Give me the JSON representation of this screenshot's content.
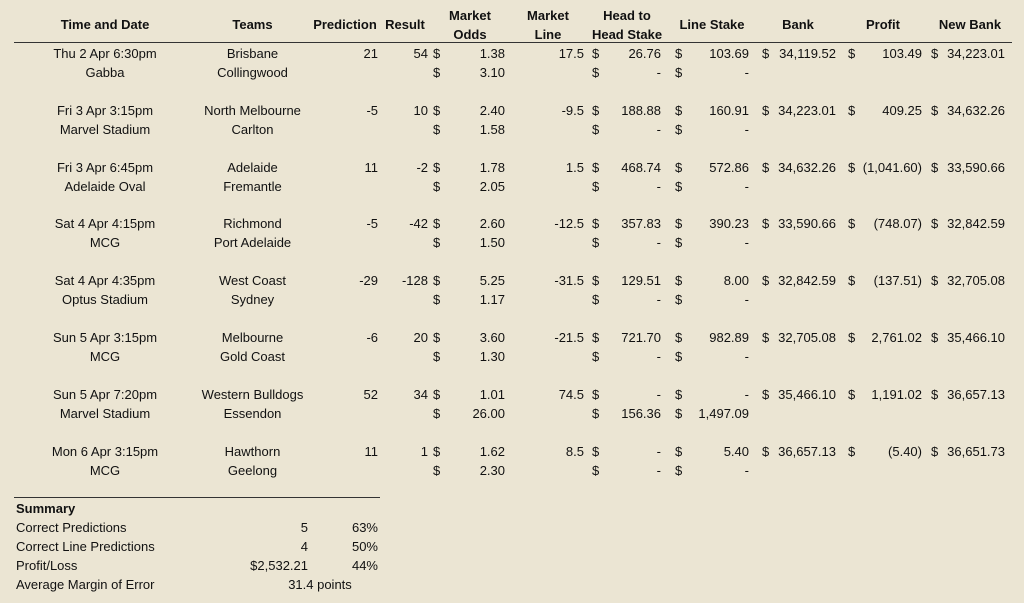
{
  "headers": {
    "time": "Time and Date",
    "teams": "Teams",
    "prediction": "Prediction",
    "result": "Result",
    "odds_1": "Market",
    "odds_2": "Odds",
    "line_1": "Market",
    "line_2": "Line",
    "h2h_1": "Head to",
    "h2h_2": "Head Stake",
    "line_stake": "Line Stake",
    "bank": "Bank",
    "profit": "Profit",
    "new_bank": "New Bank"
  },
  "currency": "$",
  "rows": [
    {
      "date": "Thu 2 Apr 6:30pm",
      "venue": "Gabba",
      "team1": "Brisbane",
      "team2": "Collingwood",
      "prediction": "21",
      "result": "54",
      "odds1": "1.38",
      "odds2": "3.10",
      "line": "17.5",
      "h2h1": "26.76",
      "h2h2": "-",
      "ls1": "103.69",
      "ls2": "-",
      "bank": "34,119.52",
      "profit": "103.49",
      "new_bank": "34,223.01"
    },
    {
      "date": "Fri 3 Apr 3:15pm",
      "venue": "Marvel Stadium",
      "team1": "North Melbourne",
      "team2": "Carlton",
      "prediction": "-5",
      "result": "10",
      "odds1": "2.40",
      "odds2": "1.58",
      "line": "-9.5",
      "h2h1": "188.88",
      "h2h2": "-",
      "ls1": "160.91",
      "ls2": "-",
      "bank": "34,223.01",
      "profit": "409.25",
      "new_bank": "34,632.26"
    },
    {
      "date": "Fri 3 Apr 6:45pm",
      "venue": "Adelaide Oval",
      "team1": "Adelaide",
      "team2": "Fremantle",
      "prediction": "11",
      "result": "-2",
      "odds1": "1.78",
      "odds2": "2.05",
      "line": "1.5",
      "h2h1": "468.74",
      "h2h2": "-",
      "ls1": "572.86",
      "ls2": "-",
      "bank": "34,632.26",
      "profit": "(1,041.60)",
      "new_bank": "33,590.66"
    },
    {
      "date": "Sat 4 Apr 4:15pm",
      "venue": "MCG",
      "team1": "Richmond",
      "team2": "Port Adelaide",
      "prediction": "-5",
      "result": "-42",
      "odds1": "2.60",
      "odds2": "1.50",
      "line": "-12.5",
      "h2h1": "357.83",
      "h2h2": "-",
      "ls1": "390.23",
      "ls2": "-",
      "bank": "33,590.66",
      "profit": "(748.07)",
      "new_bank": "32,842.59"
    },
    {
      "date": "Sat 4 Apr 4:35pm",
      "venue": "Optus Stadium",
      "team1": "West Coast",
      "team2": "Sydney",
      "prediction": "-29",
      "result": "-128",
      "odds1": "5.25",
      "odds2": "1.17",
      "line": "-31.5",
      "h2h1": "129.51",
      "h2h2": "-",
      "ls1": "8.00",
      "ls2": "-",
      "bank": "32,842.59",
      "profit": "(137.51)",
      "new_bank": "32,705.08"
    },
    {
      "date": "Sun 5 Apr 3:15pm",
      "venue": "MCG",
      "team1": "Melbourne",
      "team2": "Gold Coast",
      "prediction": "-6",
      "result": "20",
      "odds1": "3.60",
      "odds2": "1.30",
      "line": "-21.5",
      "h2h1": "721.70",
      "h2h2": "-",
      "ls1": "982.89",
      "ls2": "-",
      "bank": "32,705.08",
      "profit": "2,761.02",
      "new_bank": "35,466.10"
    },
    {
      "date": "Sun 5 Apr 7:20pm",
      "venue": "Marvel Stadium",
      "team1": "Western Bulldogs",
      "team2": "Essendon",
      "prediction": "52",
      "result": "34",
      "odds1": "1.01",
      "odds2": "26.00",
      "line": "74.5",
      "h2h1": "-",
      "h2h2": "156.36",
      "ls1": "-",
      "ls2": "1,497.09",
      "bank": "35,466.10",
      "profit": "1,191.02",
      "new_bank": "36,657.13"
    },
    {
      "date": "Mon 6 Apr 3:15pm",
      "venue": "MCG",
      "team1": "Hawthorn",
      "team2": "Geelong",
      "prediction": "11",
      "result": "1",
      "odds1": "1.62",
      "odds2": "2.30",
      "line": "8.5",
      "h2h1": "-",
      "h2h2": "-",
      "ls1": "5.40",
      "ls2": "-",
      "bank": "36,657.13",
      "profit": "(5.40)",
      "new_bank": "36,651.73"
    }
  ],
  "summary": {
    "title": "Summary",
    "items": [
      {
        "label": "Correct Predictions",
        "value": "5",
        "pct": "63%"
      },
      {
        "label": "Correct Line Predictions",
        "value": "4",
        "pct": "50%"
      },
      {
        "label": "Profit/Loss",
        "value": "$2,532.21",
        "pct": "44%"
      },
      {
        "label": "Average Margin of Error",
        "value": "31.4 points",
        "pct": ""
      }
    ]
  }
}
